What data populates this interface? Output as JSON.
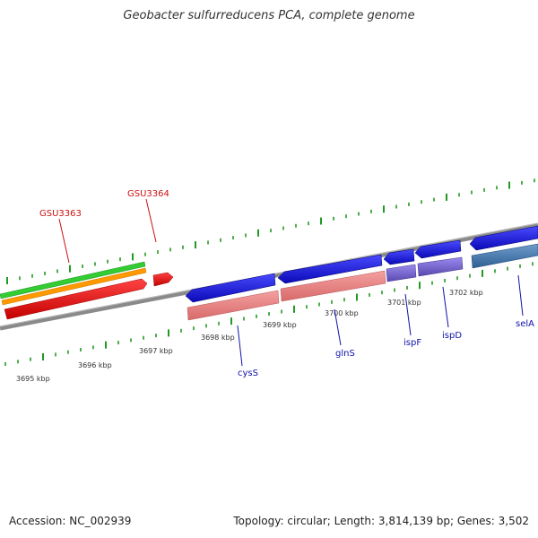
{
  "title": "Geobacter sulfurreducens PCA, complete genome",
  "footer": {
    "accession": "Accession: NC_002939",
    "summary": "Topology: circular; Length: 3,814,139 bp; Genes: 3,502"
  },
  "scale_labels": [
    "3695 kbp",
    "3696 kbp",
    "3697 kbp",
    "3698 kbp",
    "3699 kbp",
    "3700 kbp",
    "3701 kbp",
    "3702 kbp"
  ],
  "gene_labels": {
    "GSU3363": "GSU3363",
    "GSU3364": "GSU3364",
    "cysS": "cysS",
    "glnS": "glnS",
    "ispF": "ispF",
    "ispD": "ispD",
    "selA": "selA"
  },
  "colors": {
    "forward_feature": "#ee1111",
    "reverse_gene": "#1111dd",
    "reverse_cds": "#ee8888",
    "reverse_cds_alt": "#7766cc",
    "reverse_cds_blue": "#4477aa",
    "green_track": "#33cc33",
    "orange_track": "#ff9900",
    "backbone": "#888888",
    "tick": "#229922",
    "forward_label": "#cc1111",
    "reverse_label": "#1111aa"
  }
}
